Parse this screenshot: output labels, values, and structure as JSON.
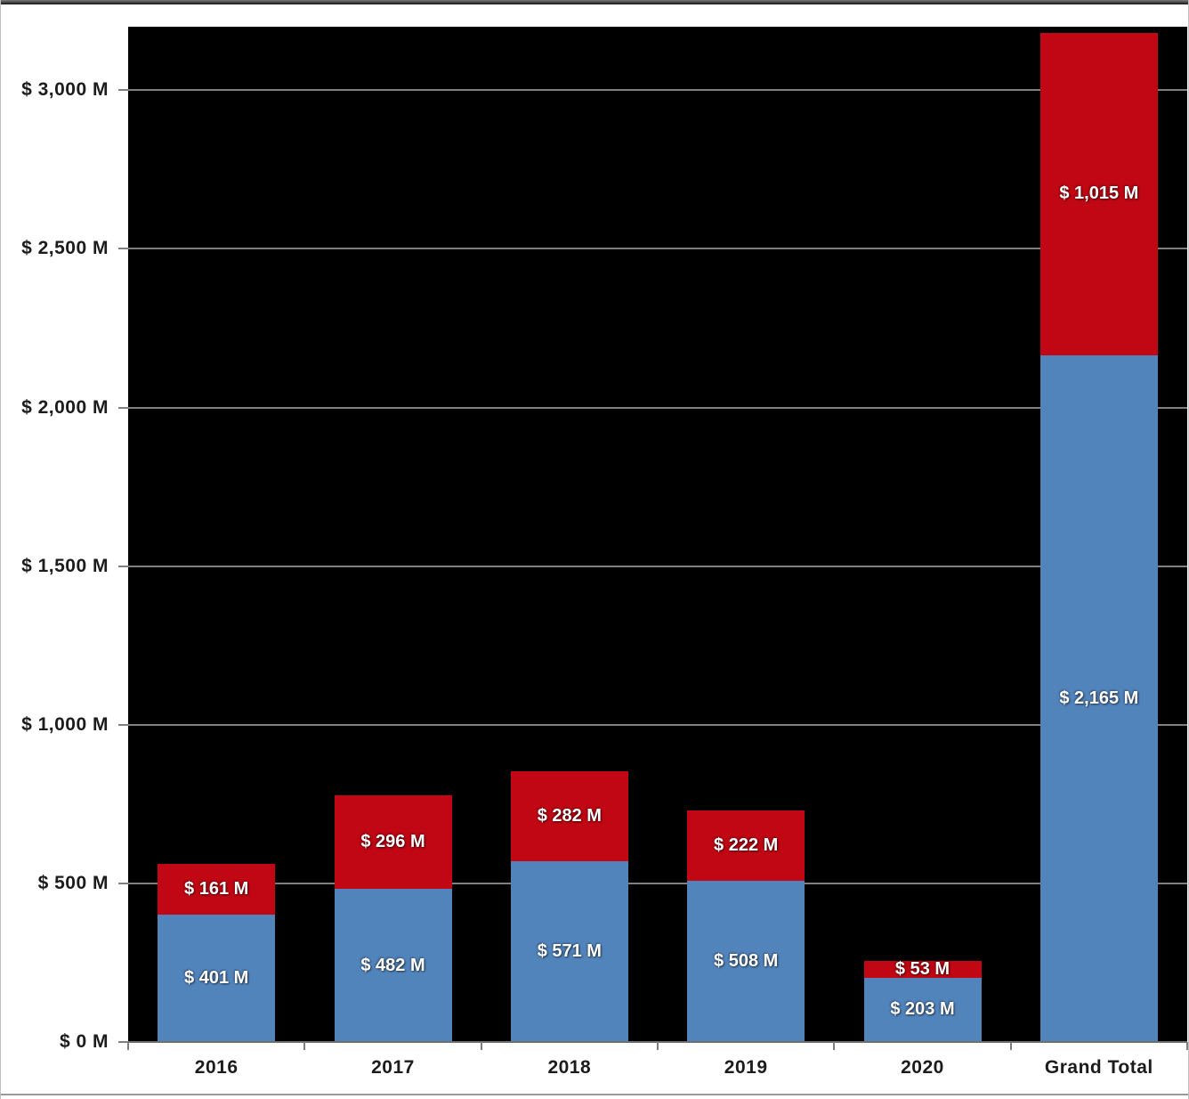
{
  "chart_data": {
    "type": "bar",
    "stacked": true,
    "title": "",
    "xlabel": "",
    "ylabel": "",
    "legend": "none",
    "grid": "horizontal",
    "plot_background": "#000000",
    "ylim": [
      0,
      3200
    ],
    "gridlines": [
      500,
      1000,
      1500,
      2000,
      2500,
      3000
    ],
    "categories": [
      "2016",
      "2017",
      "2018",
      "2019",
      "2020",
      "Grand Total"
    ],
    "series": [
      {
        "name": "blue-segment",
        "color_key": "blue",
        "values": [
          401,
          482,
          571,
          508,
          203,
          2165
        ],
        "labels": [
          "$ 401 M",
          "$ 482 M",
          "$ 571 M",
          "$ 508 M",
          "$ 203 M",
          "$ 2,165 M"
        ]
      },
      {
        "name": "red-segment",
        "color_key": "red",
        "values": [
          161,
          296,
          282,
          222,
          53,
          1015
        ],
        "labels": [
          "$ 161 M",
          "$ 296 M",
          "$ 282 M",
          "$ 222 M",
          "$ 53 M",
          "$ 1,015 M"
        ]
      }
    ],
    "y_ticks": [
      {
        "value": 0,
        "label": "$ 0 M"
      },
      {
        "value": 500,
        "label": "$ 500 M"
      },
      {
        "value": 1000,
        "label": "$ 1,000 M"
      },
      {
        "value": 1500,
        "label": "$ 1,500 M"
      },
      {
        "value": 2000,
        "label": "$ 2,000 M"
      },
      {
        "value": 2500,
        "label": "$ 2,500 M"
      },
      {
        "value": 3000,
        "label": "$ 3,000 M"
      }
    ]
  },
  "colors": {
    "blue": "#5284BC",
    "red": "#C00713",
    "plot_bg": "#000000",
    "gridline": "#7F7F7F",
    "axis_line": "#6F6F6F",
    "tick": "#7F7F7F",
    "axis_text": "#1C1C1C",
    "data_label": "#FFFFFF"
  }
}
